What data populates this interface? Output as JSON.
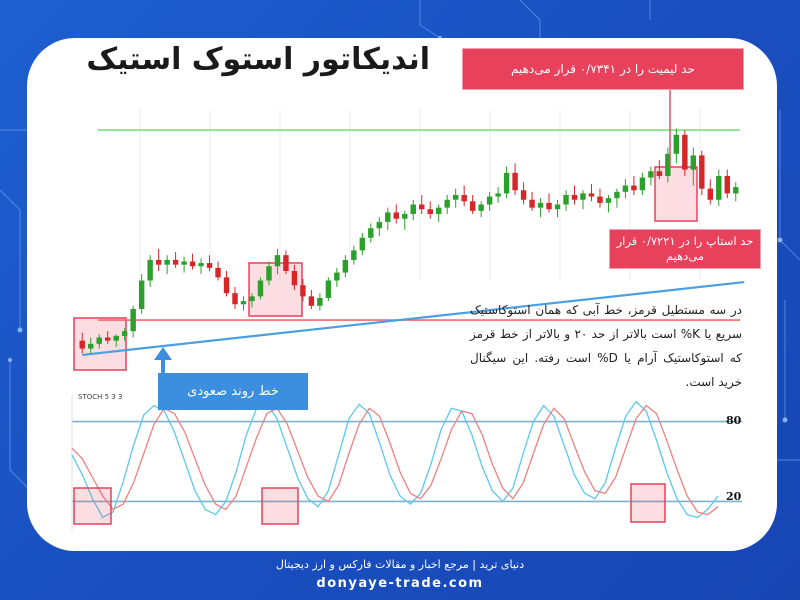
{
  "title": "اندیکاتور استوک استیک",
  "callouts": {
    "limit": "حد لیمیت را در ۰/۷۳۴۱ قرار می‌دهیم",
    "stop_line1": "حد استاپ را در ۰/۷۲۲۱ قرار",
    "stop_line2": "می‌دهیم",
    "trend": "خط روند صعودی"
  },
  "description": "در سه مستطیل قرمز، خط آبی که همان استوکاستیک سریع یا  K% است بالاتر از حد ۲۰ و بالاتر از خط قرمز که استوکاستیک آرام یا D% است رفته. این سیگنال خرید است.",
  "footer": {
    "line1": "دنیای ترید | مرجع اخبار و مقالات فارکس و ارز دیجیتال",
    "line2": "donyaye-trade.com"
  },
  "colors": {
    "background": "#1d5fd1",
    "callout_red": "#e8415c",
    "callout_blue": "#3c8fdf",
    "candle_up": "#2ca02c",
    "candle_down": "#d62728",
    "limit_line": "#7ee07e",
    "stop_line": "#f06a6a",
    "trend_line": "#4a9fe0",
    "stoch_k": "#5bc8ee",
    "stoch_d": "#f08080"
  },
  "chart_data": [
    {
      "type": "candlestick",
      "title": "",
      "horizontal_lines": [
        {
          "label": "limit",
          "value": 0.7341
        },
        {
          "label": "stop",
          "value": 0.7221
        }
      ],
      "ylim": [
        0.718,
        0.736
      ],
      "candles": [
        [
          0.7208,
          0.7213,
          0.72,
          0.7203
        ],
        [
          0.7203,
          0.721,
          0.72,
          0.7206
        ],
        [
          0.7206,
          0.7212,
          0.7203,
          0.721
        ],
        [
          0.721,
          0.7214,
          0.7206,
          0.7208
        ],
        [
          0.7208,
          0.7212,
          0.7204,
          0.7211
        ],
        [
          0.7211,
          0.7216,
          0.7208,
          0.7214
        ],
        [
          0.7214,
          0.723,
          0.721,
          0.7228
        ],
        [
          0.7228,
          0.725,
          0.7225,
          0.7246
        ],
        [
          0.7246,
          0.7262,
          0.7242,
          0.7259
        ],
        [
          0.7259,
          0.7266,
          0.7252,
          0.7256
        ],
        [
          0.7256,
          0.7262,
          0.725,
          0.7259
        ],
        [
          0.7259,
          0.7264,
          0.7254,
          0.7256
        ],
        [
          0.7256,
          0.7261,
          0.7251,
          0.7258
        ],
        [
          0.7258,
          0.7263,
          0.7253,
          0.7255
        ],
        [
          0.7255,
          0.726,
          0.725,
          0.7257
        ],
        [
          0.7257,
          0.7262,
          0.7252,
          0.7254
        ],
        [
          0.7254,
          0.7258,
          0.7246,
          0.7248
        ],
        [
          0.7248,
          0.7252,
          0.7236,
          0.7238
        ],
        [
          0.7238,
          0.7242,
          0.7228,
          0.7231
        ],
        [
          0.7231,
          0.7236,
          0.7227,
          0.7233
        ],
        [
          0.7233,
          0.7238,
          0.7229,
          0.7236
        ],
        [
          0.7236,
          0.7248,
          0.7234,
          0.7246
        ],
        [
          0.7246,
          0.7258,
          0.7243,
          0.7255
        ],
        [
          0.7255,
          0.7266,
          0.725,
          0.7262
        ],
        [
          0.7262,
          0.7265,
          0.725,
          0.7252
        ],
        [
          0.7252,
          0.7256,
          0.724,
          0.7243
        ],
        [
          0.7243,
          0.7247,
          0.7233,
          0.7236
        ],
        [
          0.7236,
          0.724,
          0.7228,
          0.723
        ],
        [
          0.723,
          0.7238,
          0.7227,
          0.7235
        ],
        [
          0.7235,
          0.7248,
          0.7233,
          0.7246
        ],
        [
          0.7246,
          0.7254,
          0.7242,
          0.7251
        ],
        [
          0.7251,
          0.7262,
          0.7248,
          0.7259
        ],
        [
          0.7259,
          0.7268,
          0.7256,
          0.7265
        ],
        [
          0.7265,
          0.7276,
          0.7262,
          0.7273
        ],
        [
          0.7273,
          0.7282,
          0.727,
          0.7279
        ],
        [
          0.7279,
          0.7286,
          0.7274,
          0.7283
        ],
        [
          0.7283,
          0.7292,
          0.7278,
          0.7289
        ],
        [
          0.7289,
          0.7294,
          0.7282,
          0.7285
        ],
        [
          0.7285,
          0.729,
          0.7278,
          0.7288
        ],
        [
          0.7288,
          0.7297,
          0.7284,
          0.7294
        ],
        [
          0.7294,
          0.73,
          0.7288,
          0.7291
        ],
        [
          0.7291,
          0.7296,
          0.7285,
          0.7288
        ],
        [
          0.7288,
          0.7294,
          0.7283,
          0.7292
        ],
        [
          0.7292,
          0.73,
          0.7288,
          0.7297
        ],
        [
          0.7297,
          0.7304,
          0.7292,
          0.73
        ],
        [
          0.73,
          0.7306,
          0.7293,
          0.7296
        ],
        [
          0.7296,
          0.73,
          0.7288,
          0.729
        ],
        [
          0.729,
          0.7296,
          0.7286,
          0.7294
        ],
        [
          0.7294,
          0.7302,
          0.729,
          0.7299
        ],
        [
          0.7299,
          0.7305,
          0.7295,
          0.7301
        ],
        [
          0.7301,
          0.7318,
          0.7298,
          0.7314
        ],
        [
          0.7314,
          0.732,
          0.73,
          0.7303
        ],
        [
          0.7303,
          0.7308,
          0.7294,
          0.7297
        ],
        [
          0.7297,
          0.7302,
          0.729,
          0.7292
        ],
        [
          0.7292,
          0.7298,
          0.7286,
          0.7295
        ],
        [
          0.7295,
          0.7301,
          0.7289,
          0.7291
        ],
        [
          0.7291,
          0.7297,
          0.7286,
          0.7294
        ],
        [
          0.7294,
          0.7303,
          0.729,
          0.73
        ],
        [
          0.73,
          0.7306,
          0.7294,
          0.7297
        ],
        [
          0.7297,
          0.7303,
          0.7291,
          0.7301
        ],
        [
          0.7301,
          0.7307,
          0.7296,
          0.7299
        ],
        [
          0.7299,
          0.7304,
          0.7292,
          0.7295
        ],
        [
          0.7295,
          0.73,
          0.7289,
          0.7298
        ],
        [
          0.7298,
          0.7304,
          0.7292,
          0.7302
        ],
        [
          0.7302,
          0.731,
          0.7298,
          0.7306
        ],
        [
          0.7306,
          0.7312,
          0.73,
          0.7303
        ],
        [
          0.7303,
          0.7314,
          0.73,
          0.7311
        ],
        [
          0.7311,
          0.7318,
          0.7306,
          0.7315
        ],
        [
          0.7315,
          0.7322,
          0.731,
          0.7312
        ],
        [
          0.7312,
          0.733,
          0.7308,
          0.7326
        ],
        [
          0.7326,
          0.7342,
          0.732,
          0.7338
        ],
        [
          0.7338,
          0.7341,
          0.7312,
          0.7316
        ],
        [
          0.7316,
          0.733,
          0.7306,
          0.7325
        ],
        [
          0.7325,
          0.7328,
          0.73,
          0.7304
        ],
        [
          0.7304,
          0.731,
          0.7294,
          0.7297
        ],
        [
          0.7297,
          0.7316,
          0.7293,
          0.7312
        ],
        [
          0.7312,
          0.7316,
          0.7298,
          0.7301
        ],
        [
          0.7301,
          0.7308,
          0.7296,
          0.7305
        ]
      ],
      "trendline": [
        [
          0,
          0.7199
        ],
        [
          78,
          0.7245
        ]
      ]
    },
    {
      "type": "line",
      "title": "STOCH 5 3 3",
      "ylim": [
        0,
        100
      ],
      "levels": [
        80,
        20
      ],
      "series": [
        {
          "name": "%K",
          "values": [
            55,
            40,
            22,
            8,
            12,
            35,
            62,
            85,
            92,
            88,
            72,
            50,
            28,
            14,
            10,
            20,
            42,
            70,
            90,
            94,
            82,
            60,
            38,
            22,
            16,
            28,
            55,
            82,
            93,
            86,
            64,
            40,
            24,
            18,
            26,
            48,
            74,
            90,
            88,
            70,
            46,
            28,
            20,
            30,
            56,
            80,
            92,
            84,
            62,
            40,
            26,
            22,
            34,
            60,
            84,
            95,
            88,
            66,
            42,
            22,
            10,
            8,
            14,
            24
          ]
        },
        {
          "name": "%D",
          "values": [
            60,
            52,
            38,
            24,
            14,
            18,
            34,
            56,
            78,
            90,
            86,
            72,
            52,
            32,
            18,
            14,
            24,
            46,
            68,
            86,
            90,
            78,
            58,
            38,
            24,
            20,
            32,
            56,
            78,
            90,
            84,
            64,
            42,
            26,
            22,
            32,
            52,
            74,
            88,
            86,
            70,
            48,
            30,
            22,
            34,
            56,
            78,
            90,
            82,
            62,
            42,
            28,
            26,
            38,
            60,
            82,
            92,
            86,
            66,
            44,
            24,
            12,
            10,
            16
          ]
        }
      ]
    }
  ]
}
